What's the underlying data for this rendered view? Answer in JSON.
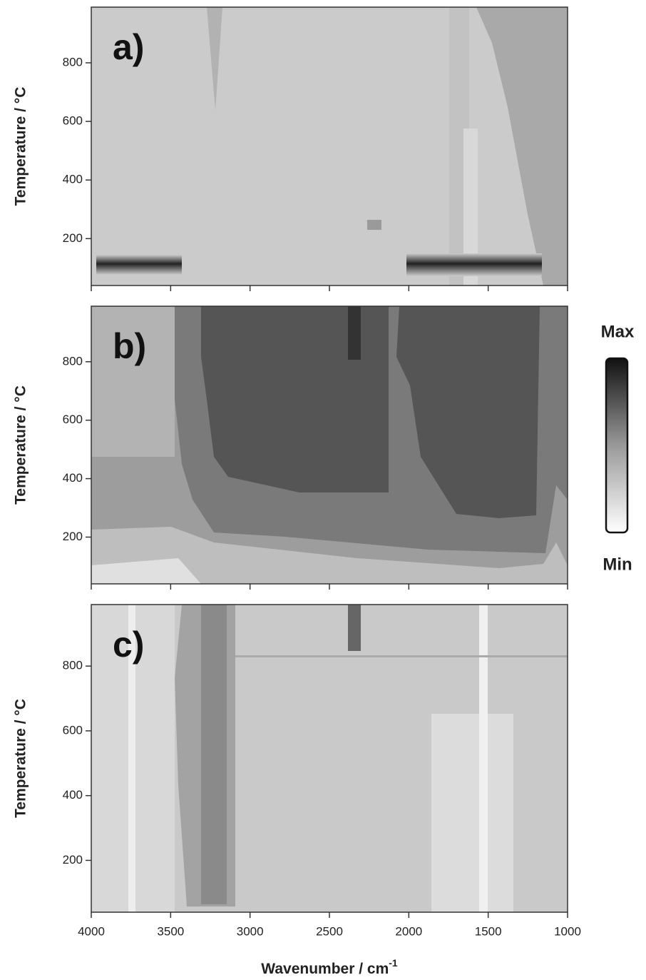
{
  "chart_data": [
    {
      "type": "heatmap",
      "panel_label": "a)",
      "ylabel": "Temperature / °C",
      "xlim": [
        4000,
        1000
      ],
      "ylim": [
        40,
        990
      ],
      "xticks": [
        4000,
        3500,
        3000,
        2500,
        2000,
        1500,
        1000
      ],
      "yticks": [
        200,
        400,
        600,
        800
      ]
    },
    {
      "type": "heatmap",
      "panel_label": "b)",
      "ylabel": "Temperature / °C",
      "xlim": [
        4000,
        1000
      ],
      "ylim": [
        40,
        990
      ],
      "xticks": [
        4000,
        3500,
        3000,
        2500,
        2000,
        1500,
        1000
      ],
      "yticks": [
        200,
        400,
        600,
        800
      ]
    },
    {
      "type": "heatmap",
      "panel_label": "c)",
      "ylabel": "Temperature / °C",
      "xlabel": "Wavenumber / cm",
      "xlabel_superscript": "-1",
      "xlim": [
        4000,
        1000
      ],
      "ylim": [
        40,
        990
      ],
      "xticks": [
        4000,
        3500,
        3000,
        2500,
        2000,
        1500,
        1000
      ],
      "yticks": [
        200,
        400,
        600,
        800
      ]
    }
  ],
  "colorbar": {
    "max_label": "Max",
    "min_label": "Min"
  }
}
